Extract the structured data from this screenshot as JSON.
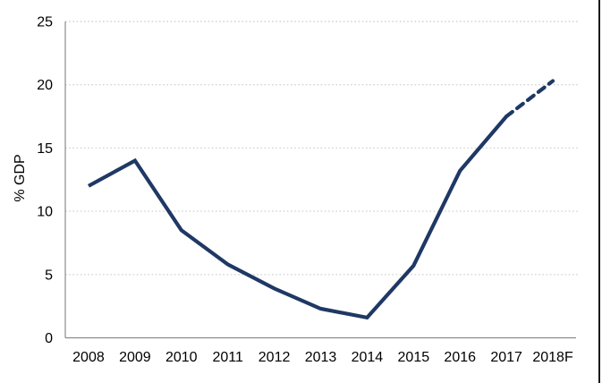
{
  "chart_data": {
    "type": "line",
    "title": "",
    "xlabel": "",
    "ylabel": "% GDP",
    "categories": [
      "2008",
      "2009",
      "2010",
      "2011",
      "2012",
      "2013",
      "2014",
      "2015",
      "2016",
      "2017",
      "2018F"
    ],
    "series": [
      {
        "name": "% GDP",
        "values": [
          12.0,
          14.0,
          8.5,
          5.8,
          3.9,
          2.3,
          1.6,
          5.7,
          13.2,
          17.5,
          20.3
        ],
        "color": "#1F3864",
        "solid_until_category": "2017",
        "dashed_segment": [
          "2017",
          "2018F"
        ],
        "dashed_meaning": "forecast"
      }
    ],
    "ylim": [
      0,
      25
    ],
    "yticks": [
      0,
      5,
      10,
      15,
      20,
      25
    ],
    "y_tick_labels": [
      "0",
      "5",
      "10",
      "15",
      "20",
      "25"
    ],
    "grid": "horizontal dotted gridlines at 5,10,15,20,25",
    "legend": "none"
  },
  "colors": {
    "line": "#1F3864",
    "gridline": "#d4d4d4",
    "axis": "#8c8c8c",
    "tick_text": "#000000",
    "background": "#ffffff",
    "right_edge_border": "#1a1a1a"
  }
}
